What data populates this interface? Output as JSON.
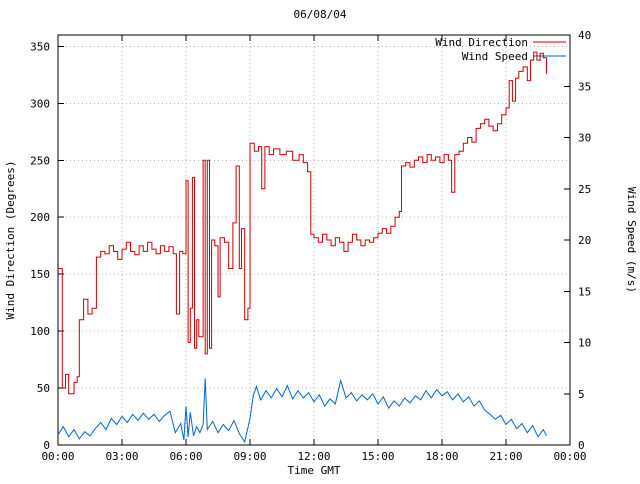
{
  "title": "06/08/04",
  "chart_data": {
    "type": "line",
    "title": "06/08/04",
    "xlabel": "Time GMT",
    "ylabel_left": "Wind Direction (Degrees)",
    "ylabel_right": "Wind Speed (m/s)",
    "x_ticks": [
      "00:00",
      "03:00",
      "06:00",
      "09:00",
      "12:00",
      "15:00",
      "18:00",
      "21:00",
      "00:00"
    ],
    "x_tick_hours": [
      0,
      3,
      6,
      9,
      12,
      15,
      18,
      21,
      24
    ],
    "xlim": [
      0,
      24
    ],
    "left_ticks": [
      0,
      50,
      100,
      150,
      200,
      250,
      300,
      350
    ],
    "ylim_left": [
      0,
      360
    ],
    "right_ticks": [
      0,
      5,
      10,
      15,
      20,
      25,
      30,
      35,
      40
    ],
    "ylim_right": [
      0,
      40
    ],
    "grid": true,
    "legend_position": "top-right",
    "colors": {
      "grid": "#b4b4b4",
      "border": "#000000"
    },
    "series": [
      {
        "name": "Wind Direction",
        "axis": "left",
        "color": "#cc0000",
        "style": "step",
        "points": [
          [
            0.0,
            155
          ],
          [
            0.2,
            50
          ],
          [
            0.35,
            62
          ],
          [
            0.5,
            45
          ],
          [
            0.75,
            55
          ],
          [
            0.9,
            60
          ],
          [
            1.0,
            110
          ],
          [
            1.2,
            128
          ],
          [
            1.4,
            115
          ],
          [
            1.6,
            120
          ],
          [
            1.8,
            165
          ],
          [
            2.0,
            170
          ],
          [
            2.2,
            168
          ],
          [
            2.4,
            175
          ],
          [
            2.6,
            170
          ],
          [
            2.8,
            163
          ],
          [
            3.0,
            172
          ],
          [
            3.2,
            178
          ],
          [
            3.4,
            170
          ],
          [
            3.6,
            167
          ],
          [
            3.8,
            175
          ],
          [
            4.0,
            170
          ],
          [
            4.2,
            178
          ],
          [
            4.4,
            172
          ],
          [
            4.6,
            168
          ],
          [
            4.8,
            175
          ],
          [
            5.0,
            170
          ],
          [
            5.2,
            174
          ],
          [
            5.4,
            168
          ],
          [
            5.55,
            115
          ],
          [
            5.7,
            170
          ],
          [
            5.85,
            168
          ],
          [
            6.0,
            232
          ],
          [
            6.1,
            90
          ],
          [
            6.2,
            120
          ],
          [
            6.3,
            235
          ],
          [
            6.4,
            85
          ],
          [
            6.5,
            110
          ],
          [
            6.6,
            95
          ],
          [
            6.8,
            250
          ],
          [
            6.9,
            80
          ],
          [
            7.0,
            250
          ],
          [
            7.1,
            85
          ],
          [
            7.2,
            180
          ],
          [
            7.35,
            175
          ],
          [
            7.5,
            130
          ],
          [
            7.6,
            182
          ],
          [
            7.8,
            178
          ],
          [
            8.0,
            155
          ],
          [
            8.2,
            195
          ],
          [
            8.35,
            245
          ],
          [
            8.5,
            155
          ],
          [
            8.6,
            190
          ],
          [
            8.75,
            110
          ],
          [
            8.9,
            120
          ],
          [
            9.0,
            265
          ],
          [
            9.2,
            258
          ],
          [
            9.4,
            262
          ],
          [
            9.55,
            225
          ],
          [
            9.7,
            262
          ],
          [
            9.9,
            255
          ],
          [
            10.1,
            260
          ],
          [
            10.4,
            255
          ],
          [
            10.7,
            258
          ],
          [
            11.0,
            250
          ],
          [
            11.3,
            255
          ],
          [
            11.5,
            248
          ],
          [
            11.7,
            240
          ],
          [
            11.85,
            185
          ],
          [
            12.0,
            182
          ],
          [
            12.2,
            178
          ],
          [
            12.4,
            185
          ],
          [
            12.6,
            180
          ],
          [
            12.8,
            175
          ],
          [
            13.0,
            182
          ],
          [
            13.2,
            178
          ],
          [
            13.4,
            170
          ],
          [
            13.6,
            178
          ],
          [
            13.8,
            185
          ],
          [
            14.0,
            180
          ],
          [
            14.2,
            175
          ],
          [
            14.4,
            180
          ],
          [
            14.6,
            178
          ],
          [
            14.8,
            182
          ],
          [
            15.0,
            186
          ],
          [
            15.2,
            190
          ],
          [
            15.4,
            186
          ],
          [
            15.6,
            192
          ],
          [
            15.8,
            200
          ],
          [
            16.0,
            205
          ],
          [
            16.1,
            245
          ],
          [
            16.3,
            248
          ],
          [
            16.5,
            244
          ],
          [
            16.7,
            250
          ],
          [
            16.9,
            253
          ],
          [
            17.1,
            248
          ],
          [
            17.3,
            255
          ],
          [
            17.5,
            250
          ],
          [
            17.7,
            253
          ],
          [
            17.9,
            248
          ],
          [
            18.1,
            255
          ],
          [
            18.3,
            250
          ],
          [
            18.45,
            222
          ],
          [
            18.6,
            255
          ],
          [
            18.8,
            258
          ],
          [
            19.0,
            265
          ],
          [
            19.2,
            270
          ],
          [
            19.4,
            266
          ],
          [
            19.6,
            278
          ],
          [
            19.8,
            282
          ],
          [
            20.0,
            286
          ],
          [
            20.2,
            280
          ],
          [
            20.4,
            276
          ],
          [
            20.6,
            282
          ],
          [
            20.8,
            290
          ],
          [
            21.0,
            296
          ],
          [
            21.15,
            320
          ],
          [
            21.3,
            302
          ],
          [
            21.45,
            322
          ],
          [
            21.6,
            328
          ],
          [
            21.8,
            332
          ],
          [
            22.0,
            320
          ],
          [
            22.15,
            338
          ],
          [
            22.3,
            345
          ],
          [
            22.45,
            338
          ],
          [
            22.6,
            344
          ],
          [
            22.75,
            340
          ],
          [
            22.9,
            326
          ]
        ]
      },
      {
        "name": "Wind Speed",
        "axis": "right",
        "color": "#0066cc",
        "style": "line",
        "points": [
          [
            0,
            1.0
          ],
          [
            0.25,
            1.8
          ],
          [
            0.5,
            0.8
          ],
          [
            0.75,
            1.5
          ],
          [
            1,
            0.6
          ],
          [
            1.25,
            1.3
          ],
          [
            1.5,
            0.9
          ],
          [
            1.75,
            1.6
          ],
          [
            2,
            2.2
          ],
          [
            2.25,
            1.5
          ],
          [
            2.5,
            2.6
          ],
          [
            2.75,
            2.0
          ],
          [
            3,
            2.8
          ],
          [
            3.25,
            2.2
          ],
          [
            3.5,
            3.0
          ],
          [
            3.75,
            2.4
          ],
          [
            4,
            3.1
          ],
          [
            4.25,
            2.5
          ],
          [
            4.5,
            3.0
          ],
          [
            4.75,
            2.3
          ],
          [
            5,
            2.9
          ],
          [
            5.25,
            3.3
          ],
          [
            5.5,
            1.2
          ],
          [
            5.75,
            2.1
          ],
          [
            5.9,
            0.5
          ],
          [
            6,
            3.8
          ],
          [
            6.1,
            0.8
          ],
          [
            6.2,
            3.2
          ],
          [
            6.35,
            0.9
          ],
          [
            6.5,
            1.8
          ],
          [
            6.65,
            1.2
          ],
          [
            6.8,
            2.0
          ],
          [
            6.9,
            6.5
          ],
          [
            7,
            1.5
          ],
          [
            7.25,
            2.3
          ],
          [
            7.5,
            1.2
          ],
          [
            7.75,
            2.0
          ],
          [
            8,
            1.4
          ],
          [
            8.25,
            2.4
          ],
          [
            8.5,
            1.1
          ],
          [
            8.75,
            0.3
          ],
          [
            9,
            2.6
          ],
          [
            9.15,
            4.8
          ],
          [
            9.3,
            5.7
          ],
          [
            9.5,
            4.4
          ],
          [
            9.75,
            5.3
          ],
          [
            10,
            4.6
          ],
          [
            10.25,
            5.5
          ],
          [
            10.5,
            4.7
          ],
          [
            10.75,
            5.8
          ],
          [
            11,
            4.5
          ],
          [
            11.25,
            5.3
          ],
          [
            11.5,
            4.6
          ],
          [
            11.75,
            5.1
          ],
          [
            12,
            4.2
          ],
          [
            12.25,
            4.9
          ],
          [
            12.5,
            3.8
          ],
          [
            12.75,
            4.5
          ],
          [
            13,
            4.0
          ],
          [
            13.25,
            6.3
          ],
          [
            13.5,
            4.6
          ],
          [
            13.75,
            5.1
          ],
          [
            14,
            4.3
          ],
          [
            14.25,
            4.9
          ],
          [
            14.5,
            4.4
          ],
          [
            14.75,
            5.0
          ],
          [
            15,
            4.0
          ],
          [
            15.25,
            4.7
          ],
          [
            15.5,
            3.6
          ],
          [
            15.75,
            4.3
          ],
          [
            16,
            3.8
          ],
          [
            16.25,
            4.6
          ],
          [
            16.5,
            4.1
          ],
          [
            16.75,
            4.8
          ],
          [
            17,
            4.4
          ],
          [
            17.25,
            5.3
          ],
          [
            17.5,
            4.6
          ],
          [
            17.75,
            5.4
          ],
          [
            18,
            4.8
          ],
          [
            18.25,
            5.2
          ],
          [
            18.5,
            4.4
          ],
          [
            18.75,
            5.0
          ],
          [
            19,
            4.2
          ],
          [
            19.25,
            4.7
          ],
          [
            19.5,
            3.8
          ],
          [
            19.75,
            4.3
          ],
          [
            20,
            3.4
          ],
          [
            20.25,
            3.0
          ],
          [
            20.5,
            2.5
          ],
          [
            20.75,
            2.9
          ],
          [
            21,
            2.0
          ],
          [
            21.25,
            2.5
          ],
          [
            21.5,
            1.6
          ],
          [
            21.75,
            2.1
          ],
          [
            22,
            1.2
          ],
          [
            22.25,
            1.9
          ],
          [
            22.5,
            0.8
          ],
          [
            22.75,
            1.5
          ],
          [
            22.9,
            0.9
          ]
        ]
      }
    ]
  }
}
